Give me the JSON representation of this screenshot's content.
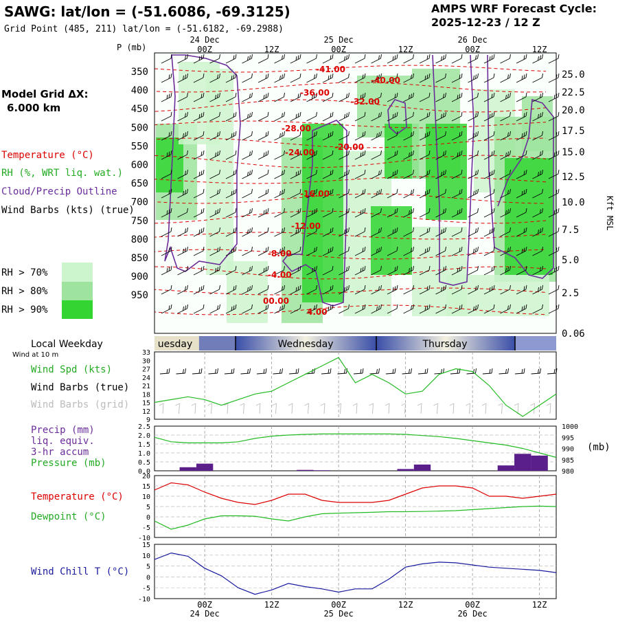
{
  "header": {
    "station_title": "SAWG:  lat/lon = (-51.6086, -69.3125)",
    "grid_point": "Grid Point (485, 211) lat/lon = (-51.6182, -69.2988)",
    "model_title": "AMPS WRF Forecast Cycle:",
    "cycle": "2025-12-23 / 12  Z"
  },
  "left_legend": {
    "model_grid_label": "Model Grid ΔX:",
    "model_grid_value": "6.000 km",
    "temperature": "Temperature (°C)",
    "rh": "RH (%, WRT liq. wat.)",
    "cloud": "Cloud/Precip Outline",
    "wind_barbs": "Wind Barbs (kts) (true)",
    "rh70": "RH > 70%",
    "rh80": "RH > 80%",
    "rh90": "RH > 90%"
  },
  "colors": {
    "rh70": "#cdf5cd",
    "rh80": "#9ee49e",
    "rh90": "#33d533",
    "temperature": "#dd0000",
    "cloud": "#6a2c9a",
    "wind_spd": "#22bb22",
    "precip": "#5a1f8a",
    "wind_chill": "#1a1aa0",
    "barb_grid": "#bbbbbb"
  },
  "time_axis": {
    "labels": [
      "00Z",
      "12Z",
      "00Z",
      "12Z",
      "00Z",
      "12Z"
    ],
    "day_labels": [
      "24 Dec",
      "25 Dec",
      "26 Dec"
    ]
  },
  "weekday": {
    "title": "Local Weekday",
    "wind_note": "Wind at 10 m",
    "days": [
      "uesday",
      "Wednesday",
      "Thursday"
    ]
  },
  "panel_labels": {
    "wind_spd": "Wind Spd (kts)",
    "wind_barbs_true": "Wind Barbs (true)",
    "wind_barbs_grid": "Wind Barbs (grid)",
    "precip1": "Precip (mm)",
    "precip2": "liq. equiv.",
    "precip3": "3-hr accum",
    "pressure": "Pressure (mb)",
    "pressure_unit": "(mb)",
    "temperature": "Temperature (°C)",
    "dewpoint": "Dewpoint (°C)",
    "wind_chill": "Wind Chill T (°C)"
  },
  "chart_data": [
    {
      "type": "heatmap",
      "panel": "cross-section",
      "y_axis_title": "P (mb)",
      "y_ticks": [
        "350",
        "400",
        "450",
        "500",
        "550",
        "600",
        "650",
        "700",
        "750",
        "800",
        "850",
        "900",
        "950"
      ],
      "y_right_title": "Kft MSL",
      "y_right_ticks": [
        "25.0",
        "22.5",
        "20.0",
        "17.5",
        "15.0",
        "12.5",
        "10.0",
        "7.5",
        "5.0",
        "2.5",
        "0.06"
      ],
      "temperature_labels": [
        "-41.00",
        "-40.00",
        "-36.00",
        "-32.00",
        "-28.00",
        "-24.00",
        "-20.00",
        "-16.00",
        "-12.00",
        "-8.00",
        "-4.00",
        "00.00",
        "4.00"
      ]
    },
    {
      "type": "line",
      "panel": "wind",
      "y_ticks": [
        "33",
        "30",
        "27",
        "24",
        "21",
        "18",
        "15",
        "12",
        "9"
      ],
      "ylim": [
        9,
        33
      ],
      "series": [
        {
          "name": "Wind Spd (kts)",
          "x": [
            0,
            3,
            6,
            9,
            12,
            15,
            18,
            21,
            24,
            27,
            30,
            33,
            36,
            39,
            42,
            45,
            48,
            51,
            54,
            57,
            60,
            63,
            66,
            69,
            72
          ],
          "values": [
            15,
            16,
            17,
            16,
            14,
            16,
            18,
            19,
            22,
            25,
            28,
            31,
            22,
            25,
            22,
            18,
            19,
            25,
            27,
            26,
            21,
            14,
            10,
            14,
            18
          ]
        }
      ]
    },
    {
      "type": "bar",
      "panel": "precip-pressure",
      "y_ticks": [
        "2.5",
        "2.0",
        "1.5",
        "1.0",
        "0.5",
        "0.0"
      ],
      "ylim": [
        0,
        2.5
      ],
      "y_right_ticks": [
        "1000",
        "995",
        "990",
        "985",
        "980"
      ],
      "y_right_lim": [
        980,
        1000
      ],
      "precip": {
        "x": [
          6,
          9,
          27,
          30,
          45,
          48,
          63,
          66,
          69
        ],
        "values": [
          0.2,
          0.4,
          0.05,
          0.03,
          0.1,
          0.35,
          0.3,
          0.95,
          0.85
        ]
      },
      "pressure": {
        "name": "Pressure (mb)",
        "x": [
          0,
          3,
          6,
          9,
          12,
          15,
          18,
          21,
          24,
          27,
          30,
          33,
          36,
          39,
          42,
          45,
          48,
          51,
          54,
          57,
          60,
          63,
          66,
          69,
          72
        ],
        "values": [
          995,
          993,
          992.5,
          992.5,
          992.5,
          993,
          994.5,
          995.5,
          996,
          996.3,
          996.5,
          996.5,
          996.5,
          996.5,
          996.5,
          996.3,
          995.8,
          995.3,
          994.5,
          993.5,
          992.5,
          991.5,
          990,
          988,
          986
        ]
      }
    },
    {
      "type": "line",
      "panel": "temperature",
      "y_ticks": [
        "20",
        "15",
        "10",
        "5",
        "0",
        "-5",
        "-10"
      ],
      "ylim": [
        -10,
        20
      ],
      "series": [
        {
          "name": "Temperature (°C)",
          "x": [
            0,
            3,
            6,
            9,
            12,
            15,
            18,
            21,
            24,
            27,
            30,
            33,
            36,
            39,
            42,
            45,
            48,
            51,
            54,
            57,
            60,
            63,
            66,
            69,
            72
          ],
          "values": [
            13,
            16.5,
            15.5,
            12,
            9,
            7,
            6,
            8,
            11,
            11,
            8,
            7,
            7,
            7,
            8,
            11,
            14,
            15,
            15,
            14,
            10,
            10,
            9,
            10,
            11
          ]
        },
        {
          "name": "Dewpoint (°C)",
          "x": [
            0,
            3,
            6,
            9,
            12,
            15,
            18,
            21,
            24,
            27,
            30,
            33,
            36,
            39,
            42,
            45,
            48,
            51,
            54,
            57,
            60,
            63,
            66,
            69,
            72
          ],
          "values": [
            -2,
            -6,
            -4,
            -1,
            0.5,
            0.5,
            0.3,
            -1,
            -2,
            0,
            1.5,
            1.8,
            2,
            2.2,
            2.5,
            2.5,
            2.6,
            2.8,
            3,
            3.5,
            4,
            4.5,
            5,
            5.2,
            5
          ]
        }
      ]
    },
    {
      "type": "line",
      "panel": "wind-chill",
      "y_ticks": [
        "15",
        "10",
        "5",
        "0",
        "-5",
        "-10"
      ],
      "ylim": [
        -10,
        15
      ],
      "series": [
        {
          "name": "Wind Chill T (°C)",
          "x": [
            0,
            3,
            6,
            9,
            12,
            15,
            18,
            21,
            24,
            27,
            30,
            33,
            36,
            39,
            42,
            45,
            48,
            51,
            54,
            57,
            60,
            63,
            66,
            69,
            72
          ],
          "values": [
            8,
            11,
            9.5,
            4,
            0.5,
            -5,
            -8,
            -6,
            -3,
            -4.5,
            -5.5,
            -7,
            -5.5,
            -5.5,
            -1,
            4.5,
            6,
            6.8,
            6.5,
            5.5,
            4.5,
            4,
            3.5,
            3,
            2
          ]
        }
      ]
    }
  ]
}
